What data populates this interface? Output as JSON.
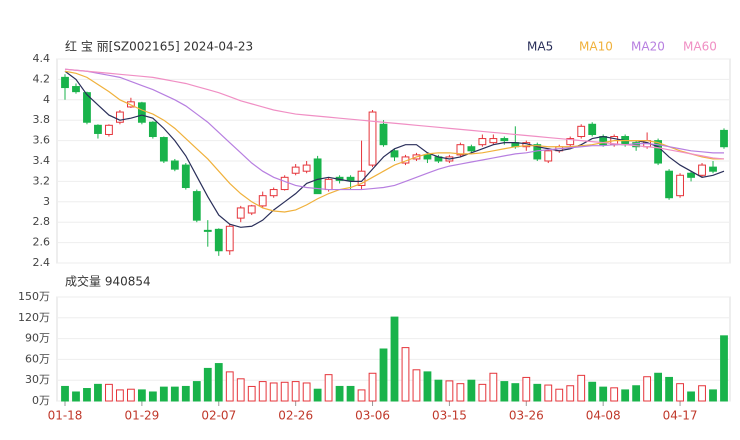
{
  "chart_data": [
    {
      "type": "candlestick",
      "title": "红 宝 丽[SZ002165] 2024-04-23",
      "up_color": "#e5343a",
      "down_color": "#19b34b",
      "ylim": [
        2.4,
        4.4
      ],
      "yticks": [
        2.4,
        2.6,
        2.8,
        3,
        3.2,
        3.4,
        3.6,
        3.8,
        4,
        4.2,
        4.4
      ],
      "grid": true,
      "open": [
        4.22,
        4.13,
        4.07,
        3.75,
        3.66,
        3.78,
        3.93,
        3.97,
        3.78,
        3.63,
        3.4,
        3.36,
        3.1,
        2.72,
        2.73,
        2.52,
        2.84,
        2.89,
        2.96,
        3.06,
        3.12,
        3.28,
        3.3,
        3.42,
        3.12,
        3.24,
        3.24,
        3.16,
        3.36,
        3.76,
        3.5,
        3.38,
        3.42,
        3.46,
        3.44,
        3.4,
        3.46,
        3.54,
        3.56,
        3.58,
        3.62,
        3.58,
        3.54,
        3.56,
        3.4,
        3.5,
        3.56,
        3.64,
        3.76,
        3.64,
        3.56,
        3.64,
        3.58,
        3.54,
        3.6,
        3.3,
        3.06,
        3.28,
        3.26,
        3.34,
        3.7
      ],
      "high": [
        4.25,
        4.16,
        4.08,
        3.76,
        3.76,
        3.9,
        4.02,
        3.98,
        3.79,
        3.64,
        3.42,
        3.38,
        3.12,
        2.82,
        2.74,
        2.78,
        2.96,
        2.97,
        3.1,
        3.14,
        3.26,
        3.37,
        3.4,
        3.45,
        3.24,
        3.26,
        3.26,
        3.6,
        3.9,
        3.8,
        3.52,
        3.46,
        3.48,
        3.48,
        3.46,
        3.46,
        3.58,
        3.56,
        3.66,
        3.66,
        3.64,
        3.74,
        3.6,
        3.58,
        3.52,
        3.56,
        3.64,
        3.76,
        3.78,
        3.66,
        3.66,
        3.66,
        3.6,
        3.68,
        3.62,
        3.32,
        3.28,
        3.3,
        3.38,
        3.4,
        3.72
      ],
      "low": [
        4.0,
        4.06,
        3.76,
        3.62,
        3.64,
        3.76,
        3.92,
        3.76,
        3.62,
        3.38,
        3.3,
        3.12,
        2.8,
        2.56,
        2.47,
        2.48,
        2.8,
        2.87,
        2.94,
        3.04,
        3.11,
        3.26,
        3.28,
        3.08,
        3.1,
        3.18,
        3.12,
        3.12,
        3.34,
        3.54,
        3.4,
        3.36,
        3.4,
        3.38,
        3.38,
        3.38,
        3.44,
        3.48,
        3.54,
        3.56,
        3.56,
        3.52,
        3.5,
        3.4,
        3.38,
        3.48,
        3.54,
        3.62,
        3.64,
        3.54,
        3.54,
        3.54,
        3.5,
        3.52,
        3.36,
        3.02,
        3.04,
        3.2,
        3.24,
        3.28,
        3.52
      ],
      "close": [
        4.12,
        4.08,
        3.78,
        3.67,
        3.75,
        3.88,
        3.98,
        3.78,
        3.64,
        3.4,
        3.32,
        3.14,
        2.82,
        2.71,
        2.52,
        2.76,
        2.94,
        2.96,
        3.06,
        3.12,
        3.24,
        3.34,
        3.36,
        3.08,
        3.22,
        3.21,
        3.21,
        3.3,
        3.88,
        3.56,
        3.44,
        3.44,
        3.46,
        3.42,
        3.4,
        3.44,
        3.56,
        3.5,
        3.62,
        3.62,
        3.6,
        3.54,
        3.58,
        3.42,
        3.5,
        3.54,
        3.62,
        3.74,
        3.66,
        3.56,
        3.64,
        3.56,
        3.54,
        3.6,
        3.38,
        3.04,
        3.26,
        3.24,
        3.36,
        3.3,
        3.54
      ],
      "series": [
        {
          "name": "MA5",
          "color": "#2a2f5a",
          "values": [
            4.28,
            4.2,
            4.05,
            3.95,
            3.85,
            3.8,
            3.82,
            3.85,
            3.82,
            3.72,
            3.6,
            3.45,
            3.25,
            3.05,
            2.87,
            2.78,
            2.75,
            2.76,
            2.82,
            2.92,
            3.0,
            3.08,
            3.18,
            3.22,
            3.24,
            3.22,
            3.2,
            3.2,
            3.32,
            3.44,
            3.52,
            3.56,
            3.56,
            3.48,
            3.44,
            3.42,
            3.44,
            3.48,
            3.52,
            3.56,
            3.58,
            3.58,
            3.57,
            3.54,
            3.52,
            3.5,
            3.52,
            3.56,
            3.62,
            3.64,
            3.62,
            3.6,
            3.6,
            3.58,
            3.54,
            3.44,
            3.36,
            3.3,
            3.24,
            3.26,
            3.3
          ]
        },
        {
          "name": "MA10",
          "color": "#f0b13c",
          "values": [
            4.28,
            4.26,
            4.22,
            4.15,
            4.08,
            4.0,
            3.95,
            3.9,
            3.86,
            3.8,
            3.72,
            3.62,
            3.52,
            3.42,
            3.3,
            3.18,
            3.08,
            3.0,
            2.94,
            2.91,
            2.9,
            2.92,
            2.97,
            3.03,
            3.08,
            3.12,
            3.14,
            3.18,
            3.24,
            3.3,
            3.36,
            3.4,
            3.44,
            3.47,
            3.48,
            3.48,
            3.47,
            3.47,
            3.48,
            3.5,
            3.52,
            3.54,
            3.55,
            3.55,
            3.54,
            3.54,
            3.54,
            3.55,
            3.56,
            3.58,
            3.6,
            3.6,
            3.6,
            3.6,
            3.58,
            3.54,
            3.5,
            3.47,
            3.44,
            3.42,
            3.42
          ]
        },
        {
          "name": "MA20",
          "color": "#b77fe0",
          "values": [
            4.3,
            4.29,
            4.28,
            4.26,
            4.24,
            4.22,
            4.18,
            4.14,
            4.1,
            4.05,
            4.0,
            3.94,
            3.86,
            3.78,
            3.68,
            3.58,
            3.48,
            3.38,
            3.3,
            3.24,
            3.2,
            3.16,
            3.14,
            3.13,
            3.12,
            3.12,
            3.12,
            3.12,
            3.13,
            3.14,
            3.16,
            3.2,
            3.24,
            3.28,
            3.32,
            3.35,
            3.37,
            3.39,
            3.41,
            3.43,
            3.45,
            3.47,
            3.48,
            3.5,
            3.51,
            3.52,
            3.53,
            3.54,
            3.55,
            3.55,
            3.56,
            3.56,
            3.57,
            3.57,
            3.56,
            3.54,
            3.52,
            3.5,
            3.49,
            3.48,
            3.48
          ]
        },
        {
          "name": "MA60",
          "color": "#f08fc4",
          "values": [
            4.3,
            4.29,
            4.28,
            4.27,
            4.26,
            4.25,
            4.24,
            4.23,
            4.22,
            4.2,
            4.18,
            4.16,
            4.13,
            4.1,
            4.07,
            4.03,
            3.99,
            3.96,
            3.93,
            3.9,
            3.88,
            3.86,
            3.85,
            3.84,
            3.83,
            3.82,
            3.81,
            3.8,
            3.79,
            3.78,
            3.77,
            3.76,
            3.75,
            3.74,
            3.73,
            3.72,
            3.71,
            3.7,
            3.69,
            3.68,
            3.67,
            3.66,
            3.65,
            3.64,
            3.63,
            3.62,
            3.61,
            3.6,
            3.59,
            3.58,
            3.57,
            3.56,
            3.55,
            3.54,
            3.53,
            3.51,
            3.49,
            3.47,
            3.45,
            3.43,
            3.42
          ]
        }
      ]
    },
    {
      "type": "bar",
      "title": "成交量 940854",
      "categories": [
        "01-18",
        null,
        null,
        null,
        null,
        null,
        null,
        "01-29",
        null,
        null,
        null,
        null,
        null,
        null,
        "02-07",
        null,
        null,
        null,
        null,
        null,
        null,
        "02-26",
        null,
        null,
        null,
        null,
        null,
        null,
        "03-06",
        null,
        null,
        null,
        null,
        null,
        null,
        "03-15",
        null,
        null,
        null,
        null,
        null,
        null,
        "03-26",
        null,
        null,
        null,
        null,
        null,
        null,
        "04-08",
        null,
        null,
        null,
        null,
        null,
        null,
        "04-17",
        null,
        null,
        null,
        null
      ],
      "values": [
        21,
        13,
        18,
        24,
        24,
        16,
        17,
        16,
        13,
        20,
        20,
        21,
        28,
        47,
        54,
        42,
        32,
        21,
        28,
        26,
        27,
        28,
        26,
        17,
        38,
        21,
        21,
        16,
        40,
        75,
        121,
        77,
        45,
        42,
        30,
        29,
        25,
        30,
        24,
        40,
        28,
        25,
        34,
        24,
        23,
        17,
        22,
        37,
        27,
        20,
        19,
        16,
        22,
        35,
        40,
        34,
        25,
        13,
        22,
        16,
        94
      ],
      "ylim": [
        0,
        150
      ],
      "yticks": [
        {
          "value": 0,
          "label": "0万"
        },
        {
          "value": 30,
          "label": "30万"
        },
        {
          "value": 60,
          "label": "60万"
        },
        {
          "value": 90,
          "label": "90万"
        },
        {
          "value": 120,
          "label": "120万"
        },
        {
          "value": 150,
          "label": "150万"
        }
      ]
    }
  ]
}
